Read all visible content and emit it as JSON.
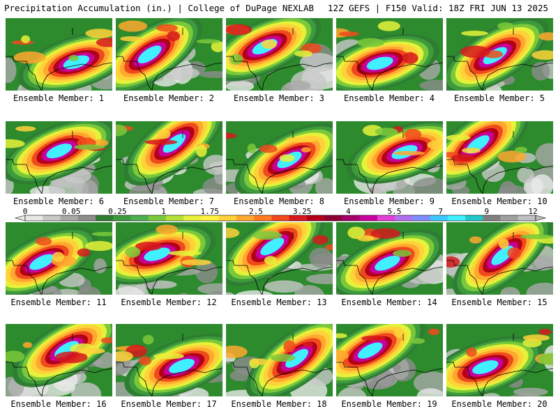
{
  "header": {
    "left": "Precipitation Accumulation (in.) | College of DuPage NEXLAB",
    "right": "12Z GEFS | F150 Valid: 18Z FRI JUN 13 2025"
  },
  "colorbar": {
    "labels": [
      "0",
      "0.05",
      "0.25",
      "1",
      "1.75",
      "2.5",
      "3.25",
      "4",
      "5.5",
      "7",
      "9",
      "12"
    ],
    "colors": [
      "#e8e8e8",
      "#c8c8c8",
      "#a9a9a9",
      "#8c8c8c",
      "#2e7d32",
      "#3d9a3d",
      "#4caf50",
      "#7bc93a",
      "#b5e03a",
      "#e6f23a",
      "#fff240",
      "#ffd23a",
      "#ffa82e",
      "#ff7b22",
      "#f04a1c",
      "#d6191c",
      "#b3001a",
      "#8e0033",
      "#a4006b",
      "#c8009e",
      "#e43fd6",
      "#b070f0",
      "#7f8cff",
      "#3ec8ff",
      "#40f0ff",
      "#20c8c8",
      "#808080",
      "#a0a0a0",
      "#c0c0c0"
    ]
  },
  "members": [
    {
      "label": "Ensemble Member: 1"
    },
    {
      "label": "Ensemble Member: 2"
    },
    {
      "label": "Ensemble Member: 3"
    },
    {
      "label": "Ensemble Member: 4"
    },
    {
      "label": "Ensemble Member: 5"
    },
    {
      "label": "Ensemble Member: 6"
    },
    {
      "label": "Ensemble Member: 7"
    },
    {
      "label": "Ensemble Member: 8"
    },
    {
      "label": "Ensemble Member: 9"
    },
    {
      "label": "Ensemble Member: 10"
    },
    {
      "label": "Ensemble Member: 11"
    },
    {
      "label": "Ensemble Member: 12"
    },
    {
      "label": "Ensemble Member: 13"
    },
    {
      "label": "Ensemble Member: 14"
    },
    {
      "label": "Ensemble Member: 15"
    },
    {
      "label": "Ensemble Member: 16"
    },
    {
      "label": "Ensemble Member: 17"
    },
    {
      "label": "Ensemble Member: 18"
    },
    {
      "label": "Ensemble Member: 19"
    },
    {
      "label": "Ensemble Member: 20"
    }
  ]
}
